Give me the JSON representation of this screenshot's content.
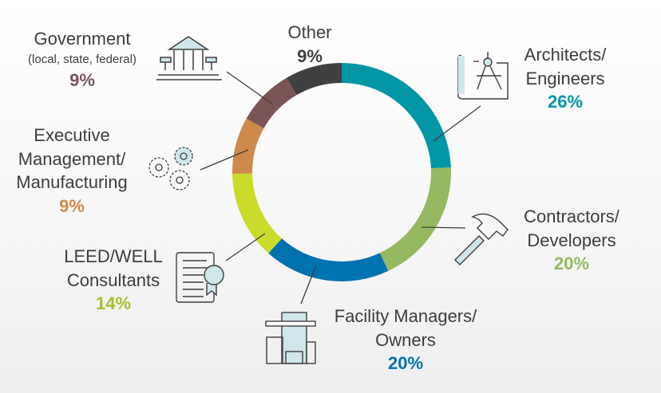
{
  "chart_data": {
    "type": "pie",
    "variant": "donut",
    "title": "",
    "start": "top",
    "direction": "clockwise",
    "segments": [
      {
        "key": "architects",
        "lines": [
          "Architects/",
          "Engineers"
        ],
        "value": 26,
        "label": "26%",
        "color": "#0096a6",
        "icon": "blueprint-compass-icon"
      },
      {
        "key": "contractors",
        "lines": [
          "Contractors/",
          "Developers"
        ],
        "value": 20,
        "label": "20%",
        "color": "#94b960",
        "icon": "hammer-icon"
      },
      {
        "key": "facility",
        "lines": [
          "Facility Managers/",
          "Owners"
        ],
        "value": 20,
        "label": "20%",
        "color": "#0072b0",
        "icon": "building-icon"
      },
      {
        "key": "leed",
        "lines": [
          "LEED/WELL",
          "Consultants"
        ],
        "value": 14,
        "label": "14%",
        "color": "#cbdb2a",
        "icon": "certificate-icon"
      },
      {
        "key": "executive",
        "lines": [
          "Executive",
          "Management/",
          "Manufacturing"
        ],
        "value": 9,
        "label": "9%",
        "color": "#cd8a4c",
        "icon": "gears-icon"
      },
      {
        "key": "government",
        "lines": [
          "Government"
        ],
        "sub": "(local, state, federal)",
        "value": 9,
        "label": "9%",
        "color": "#7d5456",
        "icon": "government-building-icon"
      },
      {
        "key": "other",
        "lines": [
          "Other"
        ],
        "value": 9,
        "label": "9%",
        "color": "#404042"
      }
    ]
  }
}
